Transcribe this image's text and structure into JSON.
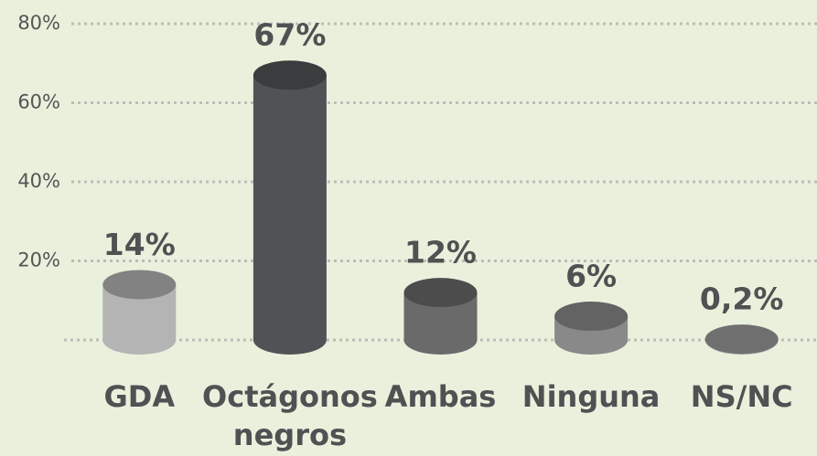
{
  "chart_data": {
    "type": "bar",
    "categories": [
      "GDA",
      "Octágonos negros",
      "Ambas",
      "Ninguna",
      "NS/NC"
    ],
    "values": [
      14,
      67,
      12,
      6,
      0.2
    ],
    "value_labels": [
      "14%",
      "67%",
      "12%",
      "6%",
      "0,2%"
    ],
    "colors": [
      "#b4b4b4",
      "#505355",
      "#6a6a6a",
      "#898989",
      "#9a9a9a"
    ],
    "ylim": [
      0,
      80
    ],
    "yticks": [
      {
        "value": 20,
        "label": "20%"
      },
      {
        "value": 40,
        "label": "40%"
      },
      {
        "value": 60,
        "label": "60%"
      },
      {
        "value": 80,
        "label": "80%"
      }
    ],
    "grid": true
  }
}
